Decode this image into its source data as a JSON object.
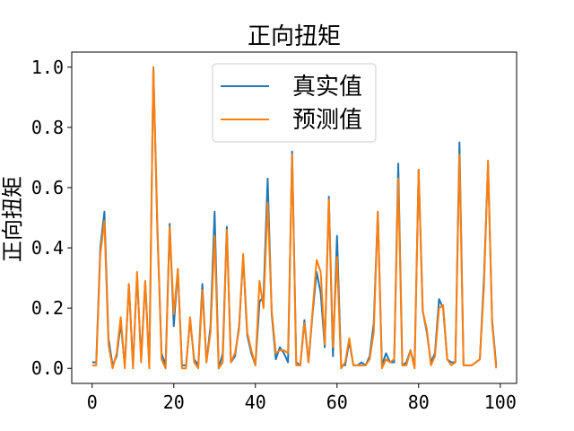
{
  "chart_data": {
    "type": "line",
    "title": "正向扭矩",
    "xlabel": "",
    "ylabel": "正向扭矩",
    "xlim": [
      -5,
      104
    ],
    "ylim": [
      -0.05,
      1.05
    ],
    "xticks": [
      0,
      20,
      40,
      60,
      80,
      100
    ],
    "yticks": [
      0.0,
      0.2,
      0.4,
      0.6,
      0.8,
      1.0
    ],
    "xtick_labels": [
      "0",
      "20",
      "40",
      "60",
      "80",
      "100"
    ],
    "ytick_labels": [
      "0.0",
      "0.2",
      "0.4",
      "0.6",
      "0.8",
      "1.0"
    ],
    "grid": false,
    "legend_position": "top-center",
    "series": [
      {
        "name": "真实值",
        "color": "#1f77b4",
        "values": [
          0.02,
          0.02,
          0.4,
          0.52,
          0.1,
          0.01,
          0.04,
          0.15,
          0.01,
          0.28,
          0.01,
          0.31,
          0.03,
          0.29,
          0.01,
          1.0,
          0.45,
          0.05,
          0.01,
          0.48,
          0.14,
          0.33,
          0.01,
          0.01,
          0.16,
          0.03,
          0.01,
          0.28,
          0.02,
          0.14,
          0.52,
          0.0,
          0.05,
          0.47,
          0.02,
          0.04,
          0.14,
          0.37,
          0.11,
          0.05,
          0.01,
          0.22,
          0.24,
          0.63,
          0.18,
          0.03,
          0.07,
          0.05,
          0.02,
          0.72,
          0.02,
          0.01,
          0.16,
          0.02,
          0.18,
          0.32,
          0.25,
          0.07,
          0.57,
          0.04,
          0.44,
          0.01,
          0.01,
          0.09,
          0.01,
          0.01,
          0.02,
          0.01,
          0.04,
          0.15,
          0.52,
          0.01,
          0.05,
          0.02,
          0.02,
          0.68,
          0.01,
          0.02,
          0.06,
          0.01,
          0.66,
          0.19,
          0.12,
          0.02,
          0.05,
          0.23,
          0.2,
          0.03,
          0.02,
          0.02,
          0.75,
          0.01,
          0.01,
          0.01,
          0.02,
          0.03,
          0.3,
          0.68,
          0.16,
          0.01
        ]
      },
      {
        "name": "预测值",
        "color": "#ff7f0e",
        "values": [
          0.01,
          0.01,
          0.38,
          0.49,
          0.08,
          0.0,
          0.05,
          0.17,
          0.0,
          0.28,
          0.0,
          0.32,
          0.02,
          0.29,
          0.0,
          1.0,
          0.47,
          0.03,
          0.0,
          0.47,
          0.18,
          0.33,
          0.0,
          0.0,
          0.17,
          0.02,
          0.0,
          0.26,
          0.02,
          0.12,
          0.44,
          0.0,
          0.02,
          0.46,
          0.02,
          0.05,
          0.13,
          0.38,
          0.12,
          0.06,
          0.01,
          0.29,
          0.2,
          0.55,
          0.19,
          0.05,
          0.06,
          0.06,
          0.05,
          0.71,
          0.01,
          0.01,
          0.15,
          0.02,
          0.19,
          0.36,
          0.32,
          0.08,
          0.56,
          0.07,
          0.37,
          0.0,
          0.02,
          0.1,
          0.01,
          0.01,
          0.01,
          0.01,
          0.03,
          0.12,
          0.52,
          0.0,
          0.03,
          0.02,
          0.03,
          0.63,
          0.01,
          0.01,
          0.06,
          0.0,
          0.66,
          0.19,
          0.13,
          0.01,
          0.04,
          0.2,
          0.21,
          0.03,
          0.01,
          0.02,
          0.71,
          0.01,
          0.01,
          0.01,
          0.02,
          0.03,
          0.27,
          0.69,
          0.15,
          0.0
        ]
      }
    ]
  }
}
